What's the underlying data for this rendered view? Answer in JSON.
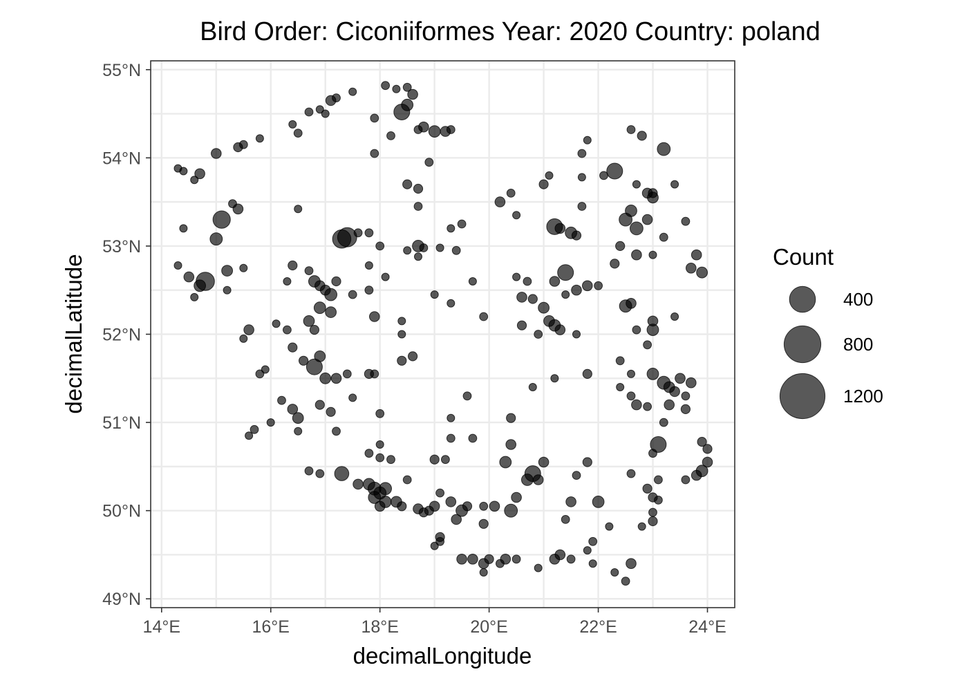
{
  "chart_data": {
    "type": "scatter",
    "title": "Bird Order: Ciconiiformes Year: 2020 Country: poland",
    "xlabel": "decimalLongitude",
    "ylabel": "decimalLatitude",
    "xlim": [
      13.8,
      24.5
    ],
    "ylim": [
      48.9,
      55.1
    ],
    "x_ticks": [
      14,
      16,
      18,
      20,
      22,
      24
    ],
    "x_tick_labels": [
      "14°E",
      "16°E",
      "18°E",
      "20°E",
      "22°E",
      "24°E"
    ],
    "y_ticks": [
      49,
      50,
      51,
      52,
      53,
      54,
      55
    ],
    "y_tick_labels": [
      "49°N",
      "50°N",
      "51°N",
      "52°N",
      "53°N",
      "54°N",
      "55°N"
    ],
    "grid": true,
    "point_color": "#000000",
    "point_opacity": 0.65,
    "legend": {
      "title": "Count",
      "placement": "right",
      "entries": [
        {
          "label": "400",
          "count": 400
        },
        {
          "label": "800",
          "count": 800
        },
        {
          "label": "1200",
          "count": 1200
        }
      ]
    },
    "points_note": "",
    "points": [
      [
        14.3,
        53.88,
        20
      ],
      [
        14.4,
        53.85,
        20
      ],
      [
        14.7,
        53.82,
        60
      ],
      [
        14.6,
        53.75,
        30
      ],
      [
        15.0,
        54.05,
        60
      ],
      [
        15.4,
        54.12,
        50
      ],
      [
        15.5,
        54.15,
        40
      ],
      [
        15.8,
        54.22,
        30
      ],
      [
        16.4,
        54.38,
        20
      ],
      [
        16.5,
        54.28,
        40
      ],
      [
        16.7,
        54.52,
        40
      ],
      [
        16.9,
        54.55,
        20
      ],
      [
        17.0,
        54.5,
        20
      ],
      [
        17.1,
        54.65,
        60
      ],
      [
        17.2,
        54.68,
        40
      ],
      [
        17.5,
        54.75,
        30
      ],
      [
        18.1,
        54.82,
        40
      ],
      [
        18.3,
        54.78,
        30
      ],
      [
        18.4,
        54.52,
        150
      ],
      [
        18.5,
        54.6,
        80
      ],
      [
        18.6,
        54.72,
        60
      ],
      [
        18.5,
        54.8,
        40
      ],
      [
        17.9,
        54.45,
        40
      ],
      [
        18.2,
        54.25,
        40
      ],
      [
        18.7,
        54.32,
        40
      ],
      [
        18.8,
        54.35,
        60
      ],
      [
        19.0,
        54.3,
        80
      ],
      [
        19.2,
        54.3,
        60
      ],
      [
        19.3,
        54.32,
        40
      ],
      [
        17.9,
        54.05,
        40
      ],
      [
        18.9,
        53.95,
        40
      ],
      [
        18.5,
        53.7,
        50
      ],
      [
        18.7,
        53.65,
        50
      ],
      [
        18.7,
        53.45,
        40
      ],
      [
        14.4,
        53.2,
        30
      ],
      [
        15.1,
        53.3,
        180
      ],
      [
        15.3,
        53.48,
        40
      ],
      [
        15.4,
        53.42,
        60
      ],
      [
        15.0,
        53.08,
        90
      ],
      [
        16.5,
        53.42,
        30
      ],
      [
        14.3,
        52.78,
        30
      ],
      [
        14.5,
        52.65,
        60
      ],
      [
        14.7,
        52.55,
        80
      ],
      [
        14.8,
        52.6,
        200
      ],
      [
        14.6,
        52.42,
        20
      ],
      [
        15.2,
        52.72,
        70
      ],
      [
        15.5,
        52.75,
        30
      ],
      [
        15.2,
        52.5,
        30
      ],
      [
        17.3,
        53.08,
        200
      ],
      [
        17.4,
        53.1,
        220
      ],
      [
        17.8,
        53.15,
        40
      ],
      [
        17.6,
        53.15,
        40
      ],
      [
        18.0,
        53.0,
        40
      ],
      [
        18.5,
        52.95,
        30
      ],
      [
        18.7,
        53.0,
        80
      ],
      [
        18.8,
        52.98,
        40
      ],
      [
        19.1,
        52.98,
        30
      ],
      [
        18.7,
        52.88,
        30
      ],
      [
        19.3,
        53.2,
        30
      ],
      [
        19.5,
        53.25,
        40
      ],
      [
        19.4,
        52.95,
        40
      ],
      [
        16.4,
        52.78,
        50
      ],
      [
        16.7,
        52.72,
        40
      ],
      [
        16.8,
        52.6,
        80
      ],
      [
        16.9,
        52.55,
        60
      ],
      [
        17.0,
        52.5,
        60
      ],
      [
        17.1,
        52.45,
        90
      ],
      [
        17.2,
        52.6,
        50
      ],
      [
        16.9,
        52.3,
        80
      ],
      [
        17.1,
        52.25,
        70
      ],
      [
        16.7,
        52.15,
        70
      ],
      [
        16.8,
        52.05,
        50
      ],
      [
        16.3,
        52.6,
        30
      ],
      [
        16.1,
        52.12,
        30
      ],
      [
        16.3,
        52.05,
        40
      ],
      [
        17.5,
        52.45,
        40
      ],
      [
        17.8,
        52.5,
        40
      ],
      [
        17.9,
        52.2,
        60
      ],
      [
        17.8,
        52.78,
        30
      ],
      [
        18.1,
        52.65,
        30
      ],
      [
        16.4,
        51.85,
        50
      ],
      [
        16.6,
        51.7,
        50
      ],
      [
        16.9,
        51.75,
        70
      ],
      [
        16.8,
        51.63,
        150
      ],
      [
        17.0,
        51.5,
        70
      ],
      [
        17.2,
        51.5,
        60
      ],
      [
        17.4,
        51.55,
        40
      ],
      [
        17.8,
        51.55,
        50
      ],
      [
        15.6,
        52.05,
        60
      ],
      [
        15.5,
        51.95,
        30
      ],
      [
        15.8,
        51.55,
        40
      ],
      [
        15.9,
        51.6,
        20
      ],
      [
        16.2,
        51.25,
        40
      ],
      [
        16.4,
        51.15,
        60
      ],
      [
        16.5,
        51.05,
        70
      ],
      [
        16.0,
        51.0,
        30
      ],
      [
        15.7,
        50.92,
        40
      ],
      [
        15.6,
        50.85,
        30
      ],
      [
        16.5,
        50.9,
        30
      ],
      [
        16.9,
        51.2,
        50
      ],
      [
        17.1,
        51.12,
        50
      ],
      [
        17.2,
        50.9,
        40
      ],
      [
        17.5,
        51.28,
        30
      ],
      [
        18.0,
        51.1,
        40
      ],
      [
        18.4,
        51.7,
        50
      ],
      [
        18.6,
        51.75,
        50
      ],
      [
        18.4,
        52.0,
        30
      ],
      [
        18.4,
        52.15,
        30
      ],
      [
        19.0,
        52.45,
        30
      ],
      [
        19.3,
        52.35,
        30
      ],
      [
        19.7,
        52.6,
        30
      ],
      [
        19.9,
        52.2,
        40
      ],
      [
        20.2,
        53.5,
        60
      ],
      [
        20.4,
        53.6,
        40
      ],
      [
        20.5,
        53.35,
        30
      ],
      [
        21.0,
        53.7,
        50
      ],
      [
        21.1,
        53.8,
        30
      ],
      [
        21.2,
        53.22,
        150
      ],
      [
        21.3,
        53.2,
        60
      ],
      [
        21.5,
        53.15,
        80
      ],
      [
        21.6,
        53.12,
        50
      ],
      [
        21.7,
        53.45,
        40
      ],
      [
        21.7,
        53.78,
        30
      ],
      [
        21.8,
        54.2,
        30
      ],
      [
        21.7,
        54.05,
        40
      ],
      [
        22.3,
        53.85,
        150
      ],
      [
        22.1,
        53.8,
        40
      ],
      [
        22.6,
        54.32,
        40
      ],
      [
        22.8,
        54.25,
        50
      ],
      [
        23.2,
        54.1,
        100
      ],
      [
        23.4,
        53.7,
        30
      ],
      [
        22.7,
        53.7,
        30
      ],
      [
        22.9,
        53.6,
        60
      ],
      [
        23.0,
        53.55,
        70
      ],
      [
        22.6,
        53.4,
        80
      ],
      [
        22.5,
        53.3,
        100
      ],
      [
        22.7,
        53.2,
        100
      ],
      [
        22.9,
        53.3,
        60
      ],
      [
        23.0,
        53.6,
        50
      ],
      [
        23.2,
        53.1,
        40
      ],
      [
        23.6,
        53.28,
        40
      ],
      [
        22.4,
        53.0,
        50
      ],
      [
        22.3,
        52.8,
        50
      ],
      [
        22.7,
        52.9,
        60
      ],
      [
        23.0,
        52.9,
        30
      ],
      [
        23.8,
        52.9,
        60
      ],
      [
        23.9,
        52.7,
        70
      ],
      [
        23.7,
        52.75,
        60
      ],
      [
        21.2,
        52.6,
        60
      ],
      [
        21.4,
        52.7,
        150
      ],
      [
        21.6,
        52.5,
        60
      ],
      [
        21.8,
        52.55,
        60
      ],
      [
        22.0,
        52.55,
        40
      ],
      [
        21.4,
        52.45,
        30
      ],
      [
        20.5,
        52.65,
        30
      ],
      [
        20.7,
        52.6,
        40
      ],
      [
        20.6,
        52.42,
        60
      ],
      [
        20.8,
        52.4,
        50
      ],
      [
        21.0,
        52.3,
        70
      ],
      [
        21.1,
        52.15,
        70
      ],
      [
        21.2,
        52.1,
        80
      ],
      [
        21.3,
        52.05,
        60
      ],
      [
        20.6,
        52.1,
        50
      ],
      [
        20.9,
        52.0,
        40
      ],
      [
        21.6,
        52.0,
        30
      ],
      [
        22.5,
        52.32,
        90
      ],
      [
        22.6,
        52.35,
        60
      ],
      [
        23.0,
        52.15,
        60
      ],
      [
        23.0,
        52.05,
        80
      ],
      [
        22.9,
        51.88,
        40
      ],
      [
        23.4,
        52.2,
        30
      ],
      [
        22.7,
        52.05,
        40
      ],
      [
        22.4,
        51.7,
        40
      ],
      [
        22.6,
        51.55,
        30
      ],
      [
        22.4,
        51.4,
        30
      ],
      [
        22.6,
        51.3,
        40
      ],
      [
        22.7,
        51.2,
        60
      ],
      [
        22.9,
        51.18,
        40
      ],
      [
        23.0,
        51.55,
        80
      ],
      [
        23.2,
        51.45,
        100
      ],
      [
        23.3,
        51.4,
        70
      ],
      [
        23.4,
        51.35,
        60
      ],
      [
        23.5,
        51.5,
        60
      ],
      [
        23.7,
        51.45,
        60
      ],
      [
        23.6,
        51.3,
        40
      ],
      [
        23.3,
        51.2,
        60
      ],
      [
        23.6,
        51.15,
        50
      ],
      [
        23.2,
        51.0,
        40
      ],
      [
        21.8,
        51.55,
        50
      ],
      [
        21.2,
        51.5,
        30
      ],
      [
        20.8,
        51.4,
        30
      ],
      [
        20.4,
        51.05,
        50
      ],
      [
        23.1,
        50.75,
        150
      ],
      [
        23.0,
        50.65,
        40
      ],
      [
        23.9,
        50.78,
        50
      ],
      [
        24.0,
        50.7,
        50
      ],
      [
        24.0,
        50.55,
        60
      ],
      [
        23.9,
        50.45,
        80
      ],
      [
        23.8,
        50.4,
        60
      ],
      [
        23.6,
        50.35,
        40
      ],
      [
        22.6,
        50.42,
        40
      ],
      [
        22.9,
        50.25,
        50
      ],
      [
        23.0,
        50.15,
        50
      ],
      [
        23.1,
        50.35,
        40
      ],
      [
        23.1,
        50.12,
        40
      ],
      [
        23.0,
        49.98,
        40
      ],
      [
        23.0,
        49.88,
        50
      ],
      [
        22.8,
        49.82,
        30
      ],
      [
        22.2,
        49.82,
        30
      ],
      [
        22.6,
        49.4,
        60
      ],
      [
        22.5,
        49.2,
        40
      ],
      [
        22.3,
        49.3,
        30
      ],
      [
        21.9,
        49.65,
        40
      ],
      [
        21.8,
        49.55,
        30
      ],
      [
        21.9,
        49.4,
        30
      ],
      [
        22.0,
        50.1,
        80
      ],
      [
        21.8,
        50.55,
        50
      ],
      [
        21.6,
        50.4,
        40
      ],
      [
        21.5,
        50.1,
        60
      ],
      [
        21.4,
        49.9,
        40
      ],
      [
        21.2,
        49.45,
        60
      ],
      [
        21.3,
        49.5,
        60
      ],
      [
        21.5,
        49.45,
        40
      ],
      [
        20.9,
        49.35,
        30
      ],
      [
        20.5,
        49.45,
        40
      ],
      [
        20.3,
        49.45,
        60
      ],
      [
        20.0,
        49.45,
        50
      ],
      [
        19.9,
        49.4,
        60
      ],
      [
        19.7,
        49.45,
        60
      ],
      [
        19.5,
        49.45,
        60
      ],
      [
        19.9,
        49.3,
        30
      ],
      [
        20.2,
        49.4,
        40
      ],
      [
        20.8,
        50.42,
        150
      ],
      [
        20.7,
        50.35,
        80
      ],
      [
        20.9,
        50.35,
        60
      ],
      [
        21.0,
        50.55,
        60
      ],
      [
        20.4,
        50.75,
        60
      ],
      [
        20.3,
        50.55,
        80
      ],
      [
        20.5,
        50.15,
        60
      ],
      [
        20.4,
        50.0,
        100
      ],
      [
        20.1,
        50.05,
        60
      ],
      [
        19.9,
        49.85,
        50
      ],
      [
        19.9,
        50.05,
        40
      ],
      [
        19.6,
        50.05,
        50
      ],
      [
        19.5,
        50.0,
        80
      ],
      [
        19.4,
        49.9,
        60
      ],
      [
        19.3,
        50.1,
        60
      ],
      [
        19.1,
        50.2,
        40
      ],
      [
        19.0,
        50.05,
        60
      ],
      [
        18.9,
        50.0,
        50
      ],
      [
        18.8,
        49.98,
        50
      ],
      [
        18.7,
        50.02,
        60
      ],
      [
        18.4,
        50.05,
        50
      ],
      [
        18.3,
        50.1,
        70
      ],
      [
        18.1,
        50.1,
        80
      ],
      [
        18.0,
        50.05,
        60
      ],
      [
        17.9,
        50.15,
        90
      ],
      [
        17.8,
        50.3,
        80
      ],
      [
        17.9,
        50.25,
        100
      ],
      [
        18.0,
        50.2,
        90
      ],
      [
        18.1,
        50.25,
        90
      ],
      [
        17.6,
        50.3,
        60
      ],
      [
        17.3,
        50.42,
        120
      ],
      [
        16.9,
        50.42,
        40
      ],
      [
        16.7,
        50.45,
        40
      ],
      [
        17.8,
        50.65,
        40
      ],
      [
        18.0,
        50.6,
        40
      ],
      [
        18.2,
        50.58,
        40
      ],
      [
        18.5,
        50.35,
        40
      ],
      [
        19.0,
        50.58,
        50
      ],
      [
        19.2,
        50.58,
        40
      ],
      [
        19.3,
        50.82,
        40
      ],
      [
        19.7,
        50.82,
        40
      ],
      [
        19.3,
        51.05,
        30
      ],
      [
        19.6,
        51.3,
        40
      ],
      [
        19.1,
        49.7,
        50
      ],
      [
        19.0,
        49.6,
        30
      ],
      [
        19.1,
        49.65,
        40
      ],
      [
        17.9,
        51.55,
        40
      ],
      [
        18.0,
        50.75,
        30
      ]
    ]
  }
}
